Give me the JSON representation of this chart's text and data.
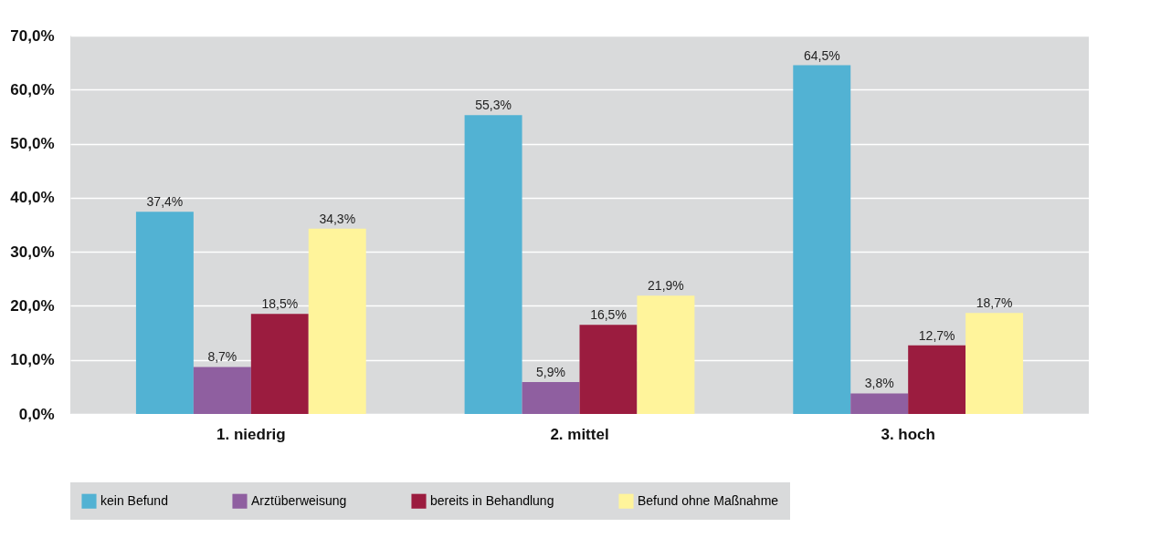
{
  "chart_data": {
    "type": "bar",
    "categories": [
      "1. niedrig",
      "2. mittel",
      "3. hoch"
    ],
    "series": [
      {
        "name": "kein Befund",
        "color": "#52b2d3",
        "values": [
          37.4,
          55.3,
          64.5
        ],
        "value_labels": [
          "37,4%",
          "55,3%",
          "64,5%"
        ]
      },
      {
        "name": "Arztüberweisung",
        "color": "#8f5fa0",
        "values": [
          8.7,
          5.9,
          3.8
        ],
        "value_labels": [
          "8,7%",
          "5,9%",
          "3,8%"
        ]
      },
      {
        "name": "bereits in Behandlung",
        "color": "#9b1c3f",
        "values": [
          18.5,
          16.5,
          12.7
        ],
        "value_labels": [
          "18,5%",
          "16,5%",
          "12,7%"
        ]
      },
      {
        "name": "Befund ohne Maßnahme",
        "color": "#fff49b",
        "values": [
          34.3,
          21.9,
          18.7
        ],
        "value_labels": [
          "34,3%",
          "21,9%",
          "18,7%"
        ]
      }
    ],
    "ylim": [
      0,
      70
    ],
    "yticks": [
      {
        "value": 0,
        "label": "0,0%"
      },
      {
        "value": 10,
        "label": "10,0%"
      },
      {
        "value": 20,
        "label": "20,0%"
      },
      {
        "value": 30,
        "label": "30,0%"
      },
      {
        "value": 40,
        "label": "40,0%"
      },
      {
        "value": 50,
        "label": "50,0%"
      },
      {
        "value": 60,
        "label": "60,0%"
      },
      {
        "value": 70,
        "label": "70,0%"
      }
    ],
    "grid": "y",
    "legend": "bottom"
  }
}
